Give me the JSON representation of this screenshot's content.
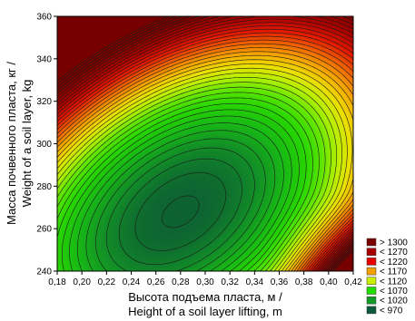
{
  "chart_data": {
    "type": "contour",
    "xlabel": [
      "Высота подъема пласта, м /",
      "Height of a soil layer lifting, m"
    ],
    "ylabel": [
      "Масса почвенного пласта, кг /",
      "Weight of a soil layer, kg"
    ],
    "xlim": [
      0.18,
      0.42
    ],
    "ylim": [
      240,
      360
    ],
    "x_ticks": [
      "0,18",
      "0,20",
      "0,22",
      "0,24",
      "0,26",
      "0,28",
      "0,30",
      "0,32",
      "0,34",
      "0,36",
      "0,38",
      "0,40",
      "0,42"
    ],
    "x_tick_values": [
      0.18,
      0.2,
      0.22,
      0.24,
      0.26,
      0.28,
      0.3,
      0.32,
      0.34,
      0.36,
      0.38,
      0.4,
      0.42
    ],
    "y_ticks": [
      "240",
      "260",
      "280",
      "300",
      "320",
      "340",
      "360"
    ],
    "y_tick_values": [
      240,
      260,
      280,
      300,
      320,
      340,
      360
    ],
    "legend_position": "bottom-right",
    "legend": [
      {
        "label": "> 1300",
        "color": "#7a0000"
      },
      {
        "label": "< 1270",
        "color": "#a60000"
      },
      {
        "label": "< 1220",
        "color": "#e60000"
      },
      {
        "label": "< 1170",
        "color": "#f5a000"
      },
      {
        "label": "< 1120",
        "color": "#c8f000"
      },
      {
        "label": "< 1070",
        "color": "#22dd00"
      },
      {
        "label": "< 1020",
        "color": "#129a26"
      },
      {
        "label": "< 970",
        "color": "#0c5a3c"
      }
    ],
    "regions": [
      {
        "name": "minimum",
        "value": 970,
        "x": 0.28,
        "y": 268
      },
      {
        "name": "maximum-corner",
        "value": 1300,
        "x": 0.42,
        "y": 240
      }
    ],
    "contour_interval": 10
  }
}
